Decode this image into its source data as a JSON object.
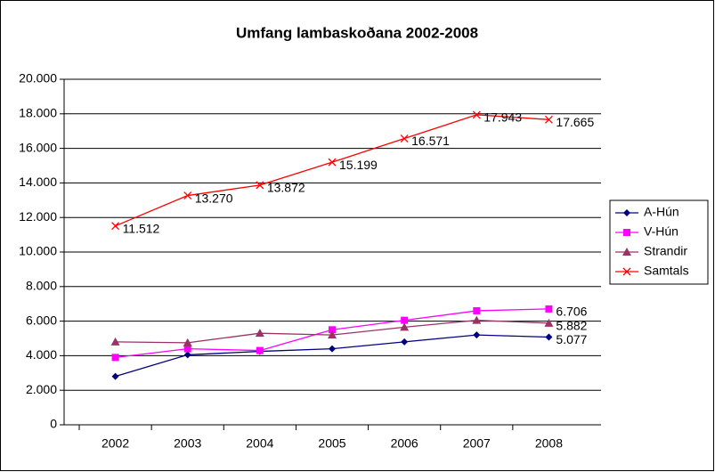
{
  "chart_data": {
    "type": "line",
    "title": "Umfang lambaskoðana 2002-2008",
    "categories": [
      "2002",
      "2003",
      "2004",
      "2005",
      "2006",
      "2007",
      "2008"
    ],
    "series": [
      {
        "name": "A-Hún",
        "color": "#000080",
        "marker": "diamond",
        "values": [
          2800,
          4050,
          4250,
          4400,
          4800,
          5200,
          5077
        ],
        "value_labels": [
          null,
          null,
          null,
          null,
          null,
          null,
          "5.077"
        ]
      },
      {
        "name": "V-Hún",
        "color": "#ff00ff",
        "marker": "square",
        "values": [
          3900,
          4400,
          4300,
          5500,
          6050,
          6600,
          6706
        ],
        "value_labels": [
          null,
          null,
          null,
          null,
          null,
          null,
          "6.706"
        ]
      },
      {
        "name": "Strandir",
        "color": "#993366",
        "marker": "triangle",
        "values": [
          4800,
          4750,
          5300,
          5200,
          5650,
          6050,
          5882
        ],
        "value_labels": [
          null,
          null,
          null,
          null,
          null,
          null,
          "5.882"
        ]
      },
      {
        "name": "Samtals",
        "color": "#ff0000",
        "marker": "x",
        "values": [
          11512,
          13270,
          13872,
          15199,
          16571,
          17943,
          17665
        ],
        "value_labels": [
          "11.512",
          "13.270",
          "13.872",
          "15.199",
          "16.571",
          "17.943",
          "17.665"
        ]
      }
    ],
    "ylim": [
      0,
      20000
    ],
    "yticks": [
      0,
      {
        "value": 2000,
        "label": "2.000"
      },
      {
        "value": 4000,
        "label": "4.000"
      },
      {
        "value": 6000,
        "label": "6.000"
      },
      {
        "value": 8000,
        "label": "8.000"
      },
      {
        "value": 10000,
        "label": "10.000"
      },
      {
        "value": 12000,
        "label": "12.000"
      },
      {
        "value": 14000,
        "label": "14.000"
      },
      {
        "value": 16000,
        "label": "16.000"
      },
      {
        "value": 18000,
        "label": "18.000"
      },
      {
        "value": 20000,
        "label": "20.000"
      }
    ],
    "grid": true,
    "legend": "right"
  }
}
